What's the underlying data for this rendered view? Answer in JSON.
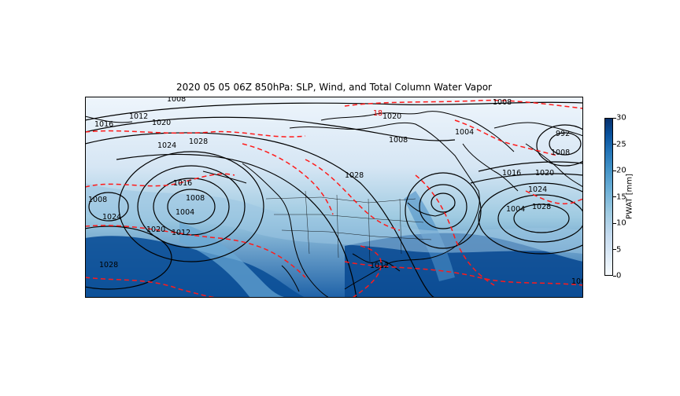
{
  "title": "2020 05 05 06Z 850hPa: SLP, Wind, and Total Column Water Vapor",
  "colorbar": {
    "label": "PWAT [mm]",
    "ticks": [
      "0",
      "5",
      "10",
      "15",
      "20",
      "25",
      "30"
    ],
    "min": 0,
    "max": 30
  },
  "colors": {
    "slp_contour": "#000000",
    "dashed_contour": "#ff0000",
    "pwat_low": "#f7fbff",
    "pwat_high": "#08306b"
  },
  "contour_labels": {
    "slp": [
      "1008",
      "1012",
      "1016",
      "1020",
      "1024",
      "1008",
      "1028",
      "1004",
      "1008",
      "1012",
      "1016",
      "1020",
      "1024",
      "1028",
      "1008",
      "1004",
      "992",
      "1008",
      "1016",
      "1020",
      "1024",
      "1028",
      "1004",
      "1008",
      "1020",
      "1012",
      "1028",
      "1008"
    ],
    "dashed": [
      "18"
    ]
  }
}
